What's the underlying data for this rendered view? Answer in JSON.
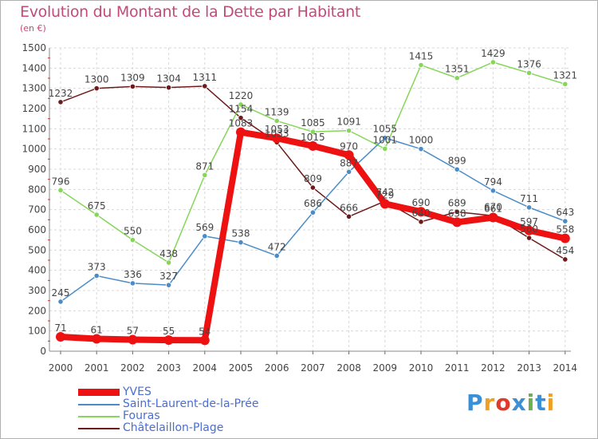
{
  "title": "Evolution du Montant de la Dette par Habitant",
  "subtitle": "(en €)",
  "logo": {
    "text": "Proxiti",
    "colors": [
      "#3a8fd6",
      "#f0a020",
      "#e03a2a",
      "#3a8fd6",
      "#6ab04c",
      "#3a8fd6",
      "#f0a020"
    ]
  },
  "chart_data": {
    "type": "line",
    "title": "Evolution du Montant de la Dette par Habitant",
    "ylabel": "(en €)",
    "x": [
      "2000",
      "2001",
      "2002",
      "2003",
      "2004",
      "2005",
      "2006",
      "2007",
      "2008",
      "2009",
      "2010",
      "2011",
      "2012",
      "2013",
      "2014"
    ],
    "ylim": [
      0,
      1500
    ],
    "yticks": [
      "0",
      "100",
      "200",
      "300",
      "400",
      "500",
      "600",
      "700",
      "800",
      "900",
      "1000",
      "1100",
      "1200",
      "1300",
      "1400",
      "1500"
    ],
    "grid": true,
    "legend_position": "bottom-left",
    "series": [
      {
        "name": "YVES",
        "color": "#ee1111",
        "values": [
          71,
          61,
          57,
          55,
          54,
          1083,
          1053,
          1015,
          970,
          729,
          690,
          638,
          661,
          597,
          558
        ]
      },
      {
        "name": "Saint-Laurent-de-la-Prée",
        "color": "#4a8cc8",
        "values": [
          245,
          373,
          336,
          327,
          569,
          538,
          472,
          686,
          887,
          1055,
          1000,
          899,
          794,
          711,
          643
        ]
      },
      {
        "name": "Fouras",
        "color": "#86d65a",
        "values": [
          796,
          675,
          550,
          438,
          871,
          1220,
          1139,
          1085,
          1091,
          1001,
          1415,
          1351,
          1429,
          1376,
          1321
        ]
      },
      {
        "name": "Châtelaillon-Plage",
        "color": "#6e1a1a",
        "values": [
          1232,
          1300,
          1309,
          1304,
          1311,
          1154,
          1033,
          809,
          666,
          742,
          640,
          689,
          670,
          560,
          454
        ]
      }
    ],
    "labels": [
      [
        "71",
        "61",
        "57",
        "55",
        "54",
        "1083",
        "1053",
        "1015",
        "970",
        "729",
        "690",
        "638",
        "661",
        "597",
        "558"
      ],
      [
        "245",
        "373",
        "336",
        "327",
        "569",
        "538",
        "472",
        "686",
        "887",
        "1055",
        "1000",
        "899",
        "794",
        "711",
        "643"
      ],
      [
        "796",
        "675",
        "550",
        "438",
        "871",
        "1220",
        "1139",
        "1085",
        "1091",
        "1001",
        "1415",
        "1351",
        "1429",
        "1376",
        "1321"
      ],
      [
        "1232",
        "1300",
        "1309",
        "1304",
        "1311",
        "1154",
        "1033",
        "809",
        "666",
        "742",
        "640",
        "689",
        "670",
        "560",
        "454"
      ]
    ]
  }
}
